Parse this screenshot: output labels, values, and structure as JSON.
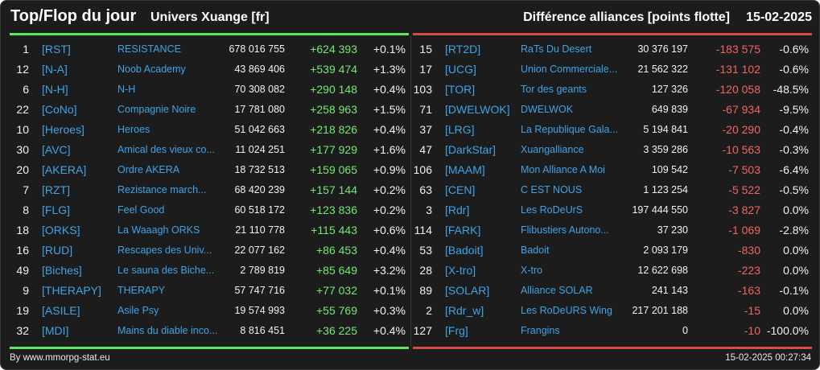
{
  "header": {
    "title": "Top/Flop du jour",
    "universe": "Univers Xuange [fr]",
    "subtitle": "Différence alliances [points flotte]",
    "date": "15-02-2025"
  },
  "colors": {
    "background": "#1c1c1c",
    "gain": "#74e874",
    "loss": "#ef6565",
    "link": "#3fa3e8",
    "top_bar": "#5ee65e",
    "flop_bar": "#d84b4b"
  },
  "top": [
    {
      "rank": "1",
      "tag": "[RST]",
      "name": "RESISTANCE",
      "points": "678 016 755",
      "diff": "+624 393",
      "pct": "+0.1%"
    },
    {
      "rank": "12",
      "tag": "[N-A]",
      "name": "Noob Academy",
      "points": "43 869 406",
      "diff": "+539 474",
      "pct": "+1.3%"
    },
    {
      "rank": "6",
      "tag": "[N-H]",
      "name": "N-H",
      "points": "70 308 082",
      "diff": "+290 148",
      "pct": "+0.4%"
    },
    {
      "rank": "22",
      "tag": "[CoNo]",
      "name": "Compagnie Noire",
      "points": "17 781 080",
      "diff": "+258 963",
      "pct": "+1.5%"
    },
    {
      "rank": "10",
      "tag": "[Heroes]",
      "name": "Heroes",
      "points": "51 042 663",
      "diff": "+218 826",
      "pct": "+0.4%"
    },
    {
      "rank": "30",
      "tag": "[AVC]",
      "name": "Amical des vieux co...",
      "points": "11 024 251",
      "diff": "+177 929",
      "pct": "+1.6%"
    },
    {
      "rank": "20",
      "tag": "[AKERA]",
      "name": "Ordre AKERA",
      "points": "18 732 513",
      "diff": "+159 065",
      "pct": "+0.9%"
    },
    {
      "rank": "7",
      "tag": "[RZT]",
      "name": "Rezistance march...",
      "points": "68 420 239",
      "diff": "+157 144",
      "pct": "+0.2%"
    },
    {
      "rank": "8",
      "tag": "[FLG]",
      "name": "Feel Good",
      "points": "60 518 172",
      "diff": "+123 836",
      "pct": "+0.2%"
    },
    {
      "rank": "18",
      "tag": "[ORKS]",
      "name": "La Waaagh ORKS",
      "points": "21 110 778",
      "diff": "+115 443",
      "pct": "+0.6%"
    },
    {
      "rank": "16",
      "tag": "[RUD]",
      "name": "Rescapes des Univ...",
      "points": "22 077 162",
      "diff": "+86 453",
      "pct": "+0.4%"
    },
    {
      "rank": "49",
      "tag": "[Biches]",
      "name": "Le sauna des Biche...",
      "points": "2 789 819",
      "diff": "+85 649",
      "pct": "+3.2%"
    },
    {
      "rank": "9",
      "tag": "[THERAPY]",
      "name": "THERAPY",
      "points": "57 747 716",
      "diff": "+77 032",
      "pct": "+0.1%"
    },
    {
      "rank": "19",
      "tag": "[ASILE]",
      "name": "Asile Psy",
      "points": "19 574 993",
      "diff": "+55 769",
      "pct": "+0.3%"
    },
    {
      "rank": "32",
      "tag": "[MDI]",
      "name": "Mains du diable inco...",
      "points": "8 816 451",
      "diff": "+36 225",
      "pct": "+0.4%"
    }
  ],
  "flop": [
    {
      "rank": "15",
      "tag": "[RT2D]",
      "name": "RaTs Du Desert",
      "points": "30 376 197",
      "diff": "-183 575",
      "pct": "-0.6%"
    },
    {
      "rank": "17",
      "tag": "[UCG]",
      "name": "Union Commerciale...",
      "points": "21 562 322",
      "diff": "-131 102",
      "pct": "-0.6%"
    },
    {
      "rank": "103",
      "tag": "[TOR]",
      "name": "Tor des geants",
      "points": "127 326",
      "diff": "-120 058",
      "pct": "-48.5%"
    },
    {
      "rank": "71",
      "tag": "[DWELWOK]",
      "name": "DWELWOK",
      "points": "649 839",
      "diff": "-67 934",
      "pct": "-9.5%"
    },
    {
      "rank": "37",
      "tag": "[LRG]",
      "name": "La Republique Gala...",
      "points": "5 194 841",
      "diff": "-20 290",
      "pct": "-0.4%"
    },
    {
      "rank": "47",
      "tag": "[DarkStar]",
      "name": "Xuangalliance",
      "points": "3 359 286",
      "diff": "-10 563",
      "pct": "-0.3%"
    },
    {
      "rank": "106",
      "tag": "[MAAM]",
      "name": "Mon Alliance A Moi",
      "points": "109 542",
      "diff": "-7 503",
      "pct": "-6.4%"
    },
    {
      "rank": "63",
      "tag": "[CEN]",
      "name": "C EST NOUS",
      "points": "1 123 254",
      "diff": "-5 522",
      "pct": "-0.5%"
    },
    {
      "rank": "3",
      "tag": "[Rdr]",
      "name": "Les RoDeUrS",
      "points": "197 444 550",
      "diff": "-3 827",
      "pct": "0.0%"
    },
    {
      "rank": "114",
      "tag": "[FARK]",
      "name": "Flibustiers Autono...",
      "points": "37 230",
      "diff": "-1 069",
      "pct": "-2.8%"
    },
    {
      "rank": "53",
      "tag": "[Badoit]",
      "name": "Badoit",
      "points": "2 093 179",
      "diff": "-830",
      "pct": "0.0%"
    },
    {
      "rank": "28",
      "tag": "[X-tro]",
      "name": "X-tro",
      "points": "12 622 698",
      "diff": "-223",
      "pct": "0.0%"
    },
    {
      "rank": "89",
      "tag": "[SOLAR]",
      "name": "Alliance SOLAR",
      "points": "241 143",
      "diff": "-163",
      "pct": "-0.1%"
    },
    {
      "rank": "2",
      "tag": "[Rdr_w]",
      "name": "Les RoDeURS Wing",
      "points": "217 201 188",
      "diff": "-15",
      "pct": "0.0%"
    },
    {
      "rank": "127",
      "tag": "[Frg]",
      "name": "Frangins",
      "points": "0",
      "diff": "-10",
      "pct": "-100.0%"
    }
  ],
  "footer": {
    "source": "By www.mmorpg-stat.eu",
    "timestamp": "15-02-2025 00:27:34"
  }
}
